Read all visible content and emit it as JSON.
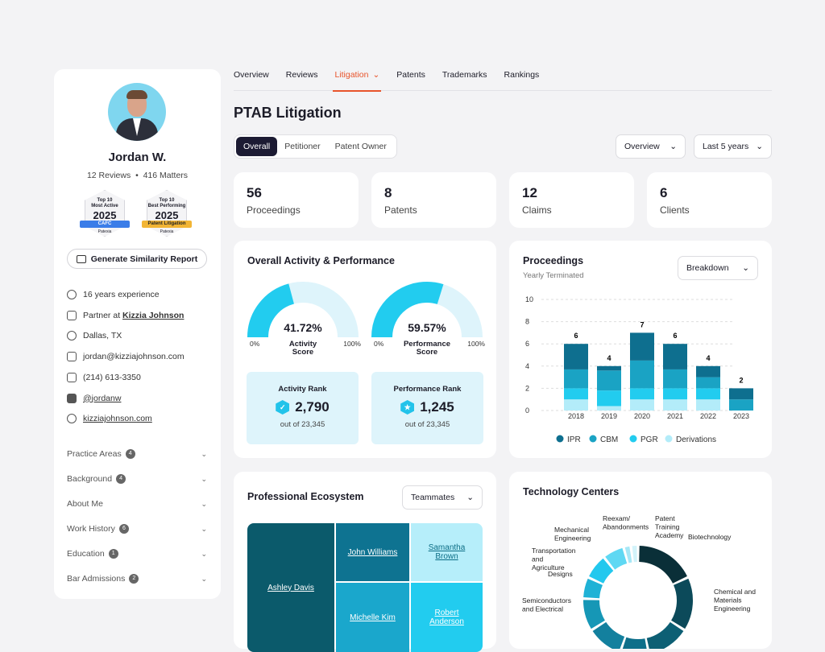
{
  "profile": {
    "name": "Jordan W.",
    "reviews": "12 Reviews",
    "matters": "416 Matters",
    "badges": [
      {
        "top": "Top 10",
        "title": "Most Active",
        "year": "2025",
        "ribbon": "CAFC",
        "brand": "Patexia",
        "color": "#3b7de8"
      },
      {
        "top": "Top 10",
        "title": "Best Performing",
        "year": "2025",
        "ribbon": "Patent Litigation",
        "brand": "Patexia",
        "color": "#f2b535"
      }
    ],
    "similarity_button": "Generate Similarity Report",
    "info": [
      {
        "icon": "shield-icon",
        "text": "16 years experience"
      },
      {
        "icon": "briefcase-icon",
        "prefix": "Partner at ",
        "link": "Kizzia Johnson"
      },
      {
        "icon": "location-icon",
        "text": "Dallas, TX"
      },
      {
        "icon": "mail-icon",
        "text": "jordan@kizziajohnson.com"
      },
      {
        "icon": "phone-icon",
        "text": "(214) 613-3350"
      },
      {
        "icon": "linkedin-icon",
        "link": "@jordanw"
      },
      {
        "icon": "globe-icon",
        "link": "kizziajohnson.com"
      }
    ],
    "sections": [
      {
        "label": "Practice Areas",
        "count": "4"
      },
      {
        "label": "Background",
        "count": "4"
      },
      {
        "label": "About Me"
      },
      {
        "label": "Work History",
        "count": "6"
      },
      {
        "label": "Education",
        "count": "1"
      },
      {
        "label": "Bar Admissions",
        "count": "2"
      }
    ]
  },
  "tabs": [
    "Overview",
    "Reviews",
    "Litigation",
    "Patents",
    "Trademarks",
    "Rankings"
  ],
  "active_tab": "Litigation",
  "page_title": "PTAB Litigation",
  "segment": [
    "Overall",
    "Petitioner",
    "Patent Owner"
  ],
  "view_select": "Overview",
  "period_select": "Last 5 years",
  "stats": [
    {
      "value": "56",
      "label": "Proceedings"
    },
    {
      "value": "8",
      "label": "Patents"
    },
    {
      "value": "12",
      "label": "Claims"
    },
    {
      "value": "6",
      "label": "Clients"
    }
  ],
  "activity": {
    "title": "Overall Activity & Performance",
    "gauges": [
      {
        "value": "41.72%",
        "fraction": 0.4172,
        "label1": "Activity",
        "label2": "Score",
        "min": "0%",
        "max": "100%"
      },
      {
        "value": "59.57%",
        "fraction": 0.5957,
        "label1": "Performance",
        "label2": "Score",
        "min": "0%",
        "max": "100%"
      }
    ],
    "ranks": [
      {
        "title": "Activity Rank",
        "value": "2,790",
        "out_of": "out of 23,345"
      },
      {
        "title": "Performance Rank",
        "value": "1,245",
        "out_of": "out of 23,345"
      }
    ]
  },
  "proceedings": {
    "title": "Proceedings",
    "subtitle": "Yearly Terminated",
    "select": "Breakdown"
  },
  "chart_data": {
    "type": "bar",
    "stacked": true,
    "categories": [
      "2018",
      "2019",
      "2020",
      "2021",
      "2022",
      "2023"
    ],
    "series": [
      {
        "name": "Derivations",
        "color": "#b3ecf9",
        "values": [
          1,
          0.4,
          1,
          1,
          1,
          0
        ]
      },
      {
        "name": "PGR",
        "color": "#22ccef",
        "values": [
          1,
          1.4,
          1,
          1,
          1,
          0
        ]
      },
      {
        "name": "CBM",
        "color": "#1aa3c4",
        "values": [
          1.7,
          1.8,
          2.5,
          1.7,
          1,
          1
        ]
      },
      {
        "name": "IPR",
        "color": "#0e6f8f",
        "values": [
          2.3,
          0.4,
          2.5,
          2.3,
          1,
          1
        ]
      }
    ],
    "totals": [
      "6",
      "4",
      "7",
      "6",
      "4",
      "2"
    ],
    "ylim": [
      0,
      10
    ],
    "yticks": [
      "0",
      "2",
      "4",
      "6",
      "8",
      "10"
    ],
    "grid": true,
    "legend": "bottom",
    "legend_order": [
      "IPR",
      "CBM",
      "PGR",
      "Derivations"
    ]
  },
  "ecosystem": {
    "title": "Professional Ecosystem",
    "select": "Teammates",
    "people": [
      "Ashley Davis",
      "John Williams",
      "Samantha Brown",
      "Michelle Kim",
      "Robert Anderson"
    ]
  },
  "tech": {
    "title": "Technology Centers",
    "segments": [
      {
        "label": "Biotechnology",
        "value": 17,
        "color": "#0a2f38"
      },
      {
        "label": "Chemical and Materials Engineering",
        "value": 15,
        "color": "#0c4a5a"
      },
      {
        "label": "",
        "value": 12,
        "color": "#0d5f74"
      },
      {
        "label": "",
        "value": 8,
        "color": "#0e6f8a"
      },
      {
        "label": "",
        "value": 10,
        "color": "#13809e"
      },
      {
        "label": "Semiconductors and Electrical",
        "value": 9,
        "color": "#1697b6"
      },
      {
        "label": "Designs",
        "value": 6,
        "color": "#1fb2d6"
      },
      {
        "label": "Transportation and Agriculture",
        "value": 7,
        "color": "#22c8ee"
      },
      {
        "label": "Mechanical Engineering",
        "value": 6,
        "color": "#5fd8f3"
      },
      {
        "label": "Reexam/ Abandonments",
        "value": 2,
        "color": "#a6e7f6"
      },
      {
        "label": "Patent Training Academy",
        "value": 2,
        "color": "#d2f3fa"
      }
    ]
  }
}
